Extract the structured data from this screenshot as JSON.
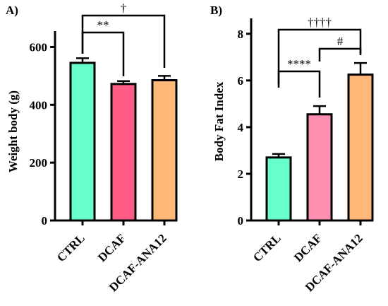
{
  "chart_data": [
    {
      "type": "bar",
      "panel_label": "A)",
      "title": "",
      "xlabel": "",
      "ylabel": "Weight body (g)",
      "ylim": [
        0,
        650
      ],
      "yticks": [
        0,
        200,
        400,
        600
      ],
      "categories": [
        "CTRL",
        "DCAF",
        "DCAF-ANA12"
      ],
      "values": [
        545,
        472,
        485
      ],
      "errors": [
        16,
        10,
        15
      ],
      "colors": [
        "#66ffcc",
        "#ff5c85",
        "#ffb877"
      ],
      "significance": [
        {
          "from": 0,
          "to": 1,
          "label": "**"
        },
        {
          "from": 0,
          "to": 2,
          "label": "†"
        }
      ]
    },
    {
      "type": "bar",
      "panel_label": "B)",
      "title": "",
      "xlabel": "",
      "ylabel": "Body Fat Index",
      "ylim": [
        0,
        8.6
      ],
      "yticks": [
        0,
        2,
        4,
        6,
        8
      ],
      "categories": [
        "CTRL",
        "DCAF",
        "DCAF-ANA12"
      ],
      "values": [
        2.7,
        4.55,
        6.25
      ],
      "errors": [
        0.15,
        0.35,
        0.5
      ],
      "colors": [
        "#66ffcc",
        "#ff8fb0",
        "#ffb877"
      ],
      "significance": [
        {
          "from": 0,
          "to": 1,
          "label": "****"
        },
        {
          "from": 1,
          "to": 2,
          "label": "#"
        },
        {
          "from": 0,
          "to": 2,
          "label": "††††"
        }
      ]
    }
  ]
}
